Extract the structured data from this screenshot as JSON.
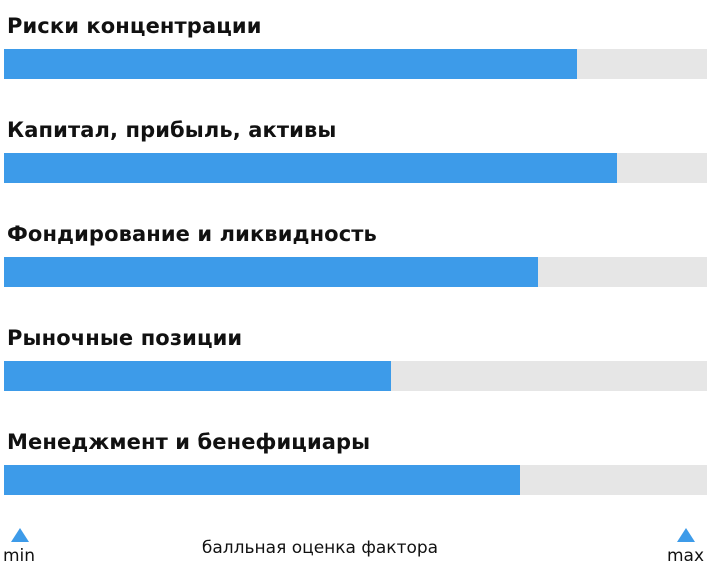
{
  "chart_data": {
    "type": "bar",
    "orientation": "horizontal",
    "categories": [
      "Риски концентрации",
      "Капитал, прибыль, активы",
      "Фондирование и ликвидность",
      "Рыночные позиции",
      "Менеджмент и бенефициары"
    ],
    "values": [
      0.815,
      0.872,
      0.76,
      0.55,
      0.734
    ],
    "xlim": [
      0,
      1
    ],
    "xlabel": "балльная оценка фактора",
    "scale_min_label": "min",
    "scale_max_label": "max",
    "grid": false,
    "legend": "none"
  },
  "colors": {
    "bar_fill": "#3d9be9",
    "bar_track": "#e6e6e6",
    "marker": "#3d9be9"
  }
}
